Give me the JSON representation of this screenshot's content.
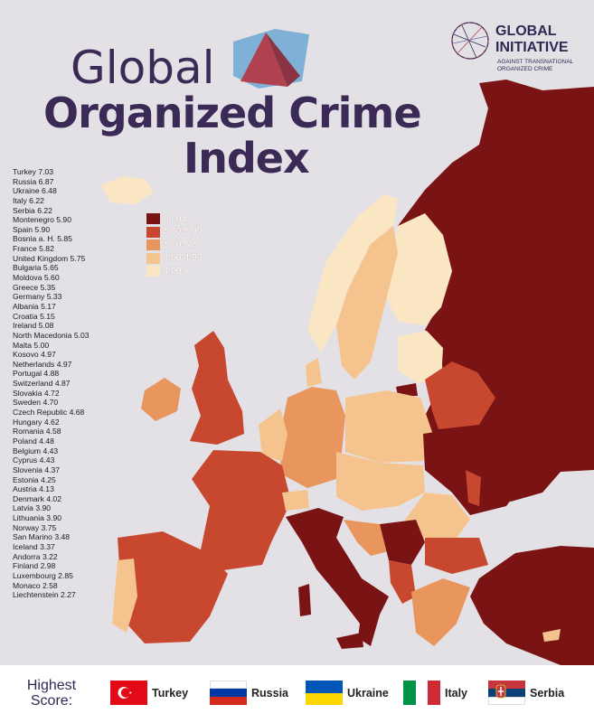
{
  "title": {
    "line1": "Global",
    "line2": "Organized Crime",
    "line3": "Index"
  },
  "logo": {
    "name_line1": "GLOBAL",
    "name_line2": "INITIATIVE",
    "tagline": "AGAINST TRANSNATIONAL ORGANIZED CRIME"
  },
  "rankings": [
    {
      "country": "Turkey",
      "score": "7.03"
    },
    {
      "country": "Russia",
      "score": "6.87"
    },
    {
      "country": "Ukraine",
      "score": "6.48"
    },
    {
      "country": "Italy",
      "score": "6.22"
    },
    {
      "country": "Serbia",
      "score": "6.22"
    },
    {
      "country": "Montenegro",
      "score": "5.90"
    },
    {
      "country": "Spain",
      "score": "5.90"
    },
    {
      "country": "Bosnia a. H.",
      "score": "5.85"
    },
    {
      "country": "France",
      "score": "5.82"
    },
    {
      "country": "United Kingdom",
      "score": "5.75"
    },
    {
      "country": "Bulgaria",
      "score": "5.65"
    },
    {
      "country": "Moldova",
      "score": "5.60"
    },
    {
      "country": "Greece",
      "score": "5.35"
    },
    {
      "country": "Germany",
      "score": "5.33"
    },
    {
      "country": "Albania",
      "score": "5.17"
    },
    {
      "country": "Croatia",
      "score": "5.15"
    },
    {
      "country": "Ireland",
      "score": "5.08"
    },
    {
      "country": "North Macedonia",
      "score": "5.03"
    },
    {
      "country": "Malta",
      "score": "5.00"
    },
    {
      "country": "Kosovo",
      "score": "4.97"
    },
    {
      "country": "Netherlands",
      "score": "4.97"
    },
    {
      "country": "Portugal",
      "score": "4.88"
    },
    {
      "country": "Switzerland",
      "score": "4.87"
    },
    {
      "country": "Slovakia",
      "score": "4.72"
    },
    {
      "country": "Sweden",
      "score": "4.70"
    },
    {
      "country": "Czech Republic",
      "score": "4.68"
    },
    {
      "country": "Hungary",
      "score": "4.62"
    },
    {
      "country": "Romania",
      "score": "4.58"
    },
    {
      "country": "Poland",
      "score": "4.48"
    },
    {
      "country": "Belgium",
      "score": "4.43"
    },
    {
      "country": "Cyprus",
      "score": "4.43"
    },
    {
      "country": "Slovenia",
      "score": "4.37"
    },
    {
      "country": "Estonia",
      "score": "4.25"
    },
    {
      "country": "Austria",
      "score": "4.13"
    },
    {
      "country": "Denmark",
      "score": "4.02"
    },
    {
      "country": "Latvia",
      "score": "3.90"
    },
    {
      "country": "Lithuania",
      "score": "3.90"
    },
    {
      "country": "Norway",
      "score": "3.75"
    },
    {
      "country": "San Marino",
      "score": "3.48"
    },
    {
      "country": "Iceland",
      "score": "3.37"
    },
    {
      "country": "Andorra",
      "score": "3.22"
    },
    {
      "country": "Finland",
      "score": "2.98"
    },
    {
      "country": "Luxembourg",
      "score": "2.85"
    },
    {
      "country": "Monaco",
      "score": "2.58"
    },
    {
      "country": "Liechtenstein",
      "score": "2.27"
    }
  ],
  "legend": [
    {
      "label": "6.00 ≤",
      "color": "#7a1313"
    },
    {
      "label": "5.50-5.99",
      "color": "#c8472f"
    },
    {
      "label": "5.00-5.49",
      "color": "#e8955e"
    },
    {
      "label": "4.00-4.99",
      "color": "#f5c48e"
    },
    {
      "label": "4.00 >",
      "color": "#fbe6c4"
    }
  ],
  "footer": {
    "title_line1": "Highest",
    "title_line2": "Score:",
    "flags": [
      {
        "name": "Turkey",
        "icon": "turkey-flag-icon"
      },
      {
        "name": "Russia",
        "icon": "russia-flag-icon"
      },
      {
        "name": "Ukraine",
        "icon": "ukraine-flag-icon"
      },
      {
        "name": "Italy",
        "icon": "italy-flag-icon"
      },
      {
        "name": "Serbia",
        "icon": "serbia-flag-icon"
      }
    ]
  },
  "colors": {
    "background": "#e4e1e6",
    "title": "#3a2a55",
    "band_6_plus": "#7a1313",
    "band_5_5": "#c8472f",
    "band_5_0": "#e8955e",
    "band_4_0": "#f5c48e",
    "band_below_4": "#fbe6c4"
  }
}
